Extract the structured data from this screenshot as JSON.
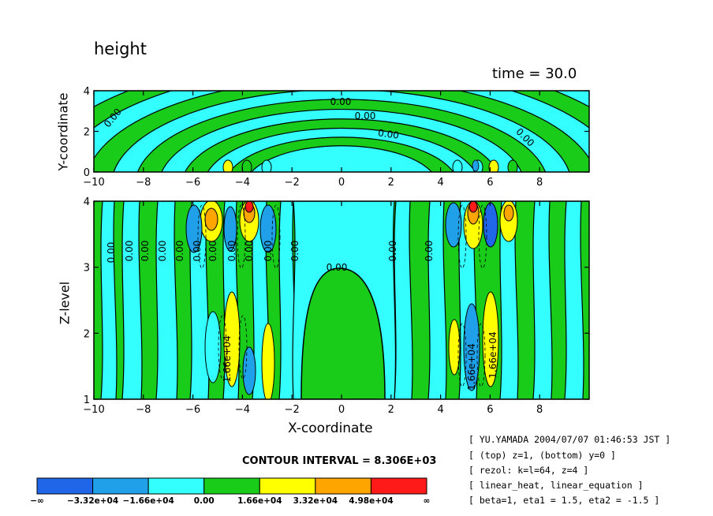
{
  "title": "height",
  "time_label": "time = 30.0",
  "contour_interval": "CONTOUR INTERVAL = 8.306E+03",
  "metadata": [
    "[ YU.YAMADA 2004/07/07 01:46:53 JST ]",
    "[ (top) z=1, (bottom) y=0 ]",
    "[ rezol: k=l=64, z=4 ]",
    "[ linear_heat, linear_equation ]",
    "[ beta=1, eta1 = 1.5, eta2 = -1.5 ]"
  ],
  "colors": {
    "c1": "#1f66e8",
    "c2": "#1fa0e8",
    "c3": "#33ffff",
    "c4": "#19cc19",
    "c5": "#ffff00",
    "c6": "#ffa500",
    "c7": "#ff1a1a"
  },
  "chart_data": [
    {
      "type": "heatmap",
      "panel": "top",
      "xlabel": "",
      "ylabel": "Y-coordinate",
      "xlim": [
        -10,
        10
      ],
      "ylim": [
        0,
        4
      ],
      "x_ticks": [
        -10,
        -8,
        -6,
        -4,
        -2,
        0,
        2,
        4,
        6,
        8
      ],
      "y_ticks": [
        0,
        2,
        4
      ],
      "contour_labels": [
        "0.00",
        "0.00",
        "0.00",
        "0.00",
        "0.00",
        "0.00"
      ]
    },
    {
      "type": "heatmap",
      "panel": "bottom",
      "xlabel": "X-coordinate",
      "ylabel": "Z-level",
      "xlim": [
        -10,
        10
      ],
      "ylim": [
        1,
        4
      ],
      "x_ticks": [
        -10,
        -8,
        -6,
        -4,
        -2,
        0,
        2,
        4,
        6,
        8
      ],
      "y_ticks": [
        1,
        2,
        3,
        4
      ],
      "contour_labels": [
        "0.00",
        "0.00",
        "0.00",
        "0.00",
        "0.00",
        "0.00",
        "0.00",
        "0.00",
        "0.00",
        "0.00",
        "0.00",
        "0.00",
        "0.00",
        "1.66e+04",
        "1.66e+04",
        "1.66e+04"
      ]
    },
    {
      "type": "colorbar",
      "levels": [
        "-∞",
        "-3.32e+04",
        "-1.66e+04",
        "0.00",
        "1.66e+04",
        "3.32e+04",
        "4.98e+04",
        "∞"
      ],
      "color_keys": [
        "c1",
        "c2",
        "c3",
        "c4",
        "c5",
        "c6",
        "c7"
      ]
    }
  ]
}
